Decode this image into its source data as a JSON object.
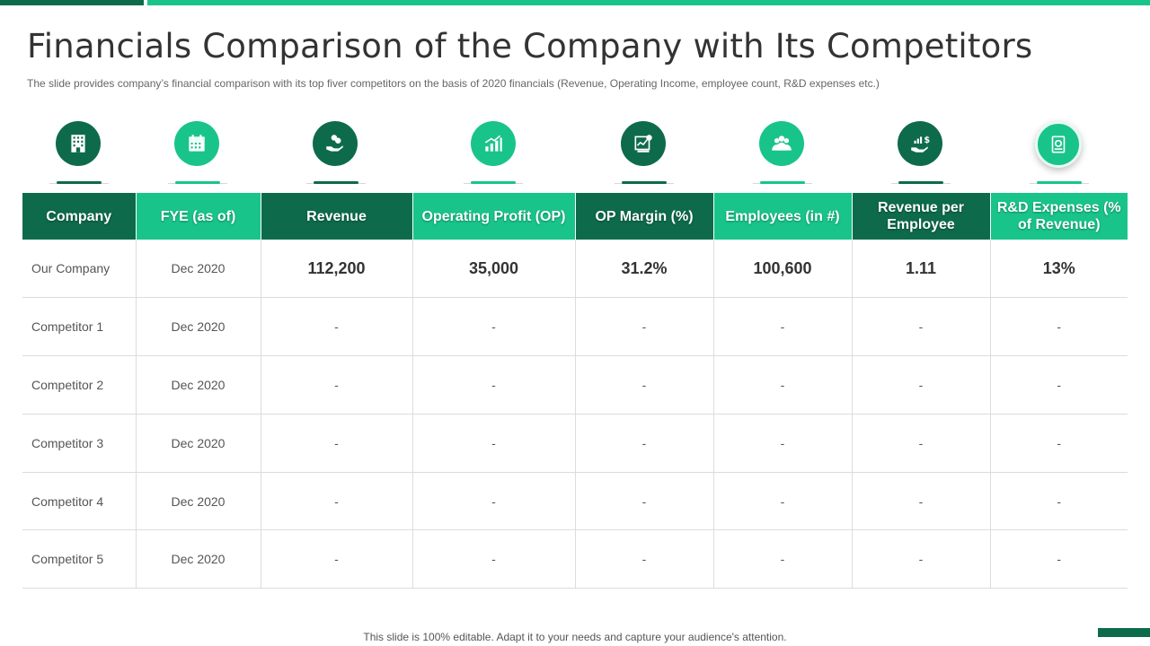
{
  "title": "Financials Comparison of the Company with Its Competitors",
  "subtitle": "The slide provides  company’s financial comparison with its top fiver  competitors on the basis of 2020 financials (Revenue,  Operating Income, employee count, R&D expenses etc.)",
  "icons": [
    {
      "name": "building-icon",
      "style": "dark"
    },
    {
      "name": "calendar-icon",
      "style": "light"
    },
    {
      "name": "hand-coins-icon",
      "style": "dark"
    },
    {
      "name": "growth-chart-icon",
      "style": "light"
    },
    {
      "name": "financial-report-icon",
      "style": "dark"
    },
    {
      "name": "employees-group-icon",
      "style": "light"
    },
    {
      "name": "hand-revenue-icon",
      "style": "dark"
    },
    {
      "name": "research-document-icon",
      "style": "light"
    }
  ],
  "table": {
    "headers": [
      "Company",
      "FYE (as of)",
      "Revenue",
      "Operating Profit (OP)",
      "OP Margin (%)",
      "Employees (in #)",
      "Revenue per Employee",
      "R&D Expenses (% of Revenue)"
    ],
    "rows": [
      [
        "Our Company",
        "Dec 2020",
        "112,200",
        "35,000",
        "31.2%",
        "100,600",
        "1.11",
        "13%"
      ],
      [
        "Competitor 1",
        "Dec 2020",
        "-",
        "-",
        "-",
        "-",
        "-",
        "-"
      ],
      [
        "Competitor 2",
        "Dec 2020",
        "-",
        "-",
        "-",
        "-",
        "-",
        "-"
      ],
      [
        "Competitor 3",
        "Dec 2020",
        "-",
        "-",
        "-",
        "-",
        "-",
        "-"
      ],
      [
        "Competitor 4",
        "Dec 2020",
        "-",
        "-",
        "-",
        "-",
        "-",
        "-"
      ],
      [
        "Competitor 5",
        "Dec 2020",
        "-",
        "-",
        "-",
        "-",
        "-",
        "-"
      ]
    ]
  },
  "footer": "This slide is 100% editable. Adapt it to your needs and capture your audience's attention.",
  "colors": {
    "dark_green": "#0d6b4b",
    "light_green": "#19c48a"
  }
}
